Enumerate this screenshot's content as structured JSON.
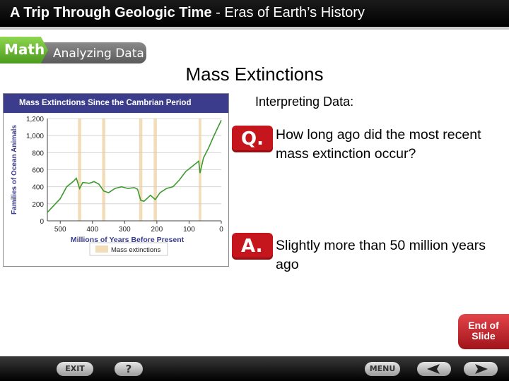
{
  "header": {
    "title_bold": "A Trip Through Geologic Time",
    "title_rest": " - Eras of Earth’s History"
  },
  "badge": {
    "math": "Math",
    "analyzing": "Analyzing Data"
  },
  "slide_title": "Mass Extinctions",
  "interpreting": "Interpreting Data:",
  "question": {
    "badge": "Q.",
    "text": "How long ago did the most recent mass extinction occur?"
  },
  "answer": {
    "badge": "A.",
    "text": "Slightly more than 50 million years ago"
  },
  "end_slide": {
    "line1": "End of",
    "line2": "Slide"
  },
  "footer": {
    "exit": "EXIT",
    "help": "?",
    "menu": "MENU",
    "prev_icon": "left-arrow-icon",
    "next_icon": "right-arrow-icon"
  },
  "chart_data": {
    "type": "line",
    "title": "Mass Extinctions Since the Cambrian Period",
    "xlabel": "Millions of Years Before Present",
    "ylabel": "Families of Ocean Animals",
    "xlim": [
      540,
      0
    ],
    "ylim": [
      0,
      1200
    ],
    "x_ticks": [
      "500",
      "400",
      "300",
      "200",
      "100",
      "0"
    ],
    "y_ticks": [
      "0",
      "200",
      "400",
      "600",
      "800",
      "1,000",
      "1,200"
    ],
    "legend": [
      "Mass extinctions"
    ],
    "extinction_bands": [
      [
        445,
        435
      ],
      [
        370,
        360
      ],
      [
        255,
        245
      ],
      [
        210,
        200
      ],
      [
        70,
        62
      ]
    ],
    "series": [
      {
        "values": [
          {
            "x": 540,
            "y": 100
          },
          {
            "x": 520,
            "y": 180
          },
          {
            "x": 500,
            "y": 260
          },
          {
            "x": 480,
            "y": 400
          },
          {
            "x": 460,
            "y": 460
          },
          {
            "x": 450,
            "y": 500
          },
          {
            "x": 440,
            "y": 380
          },
          {
            "x": 430,
            "y": 450
          },
          {
            "x": 410,
            "y": 440
          },
          {
            "x": 395,
            "y": 460
          },
          {
            "x": 380,
            "y": 430
          },
          {
            "x": 365,
            "y": 350
          },
          {
            "x": 350,
            "y": 330
          },
          {
            "x": 330,
            "y": 380
          },
          {
            "x": 310,
            "y": 400
          },
          {
            "x": 290,
            "y": 380
          },
          {
            "x": 270,
            "y": 390
          },
          {
            "x": 260,
            "y": 370
          },
          {
            "x": 250,
            "y": 240
          },
          {
            "x": 240,
            "y": 230
          },
          {
            "x": 220,
            "y": 300
          },
          {
            "x": 205,
            "y": 250
          },
          {
            "x": 190,
            "y": 330
          },
          {
            "x": 170,
            "y": 380
          },
          {
            "x": 150,
            "y": 400
          },
          {
            "x": 130,
            "y": 480
          },
          {
            "x": 110,
            "y": 580
          },
          {
            "x": 90,
            "y": 640
          },
          {
            "x": 70,
            "y": 700
          },
          {
            "x": 66,
            "y": 560
          },
          {
            "x": 55,
            "y": 740
          },
          {
            "x": 40,
            "y": 850
          },
          {
            "x": 25,
            "y": 980
          },
          {
            "x": 10,
            "y": 1100
          },
          {
            "x": 0,
            "y": 1180
          }
        ]
      }
    ]
  }
}
